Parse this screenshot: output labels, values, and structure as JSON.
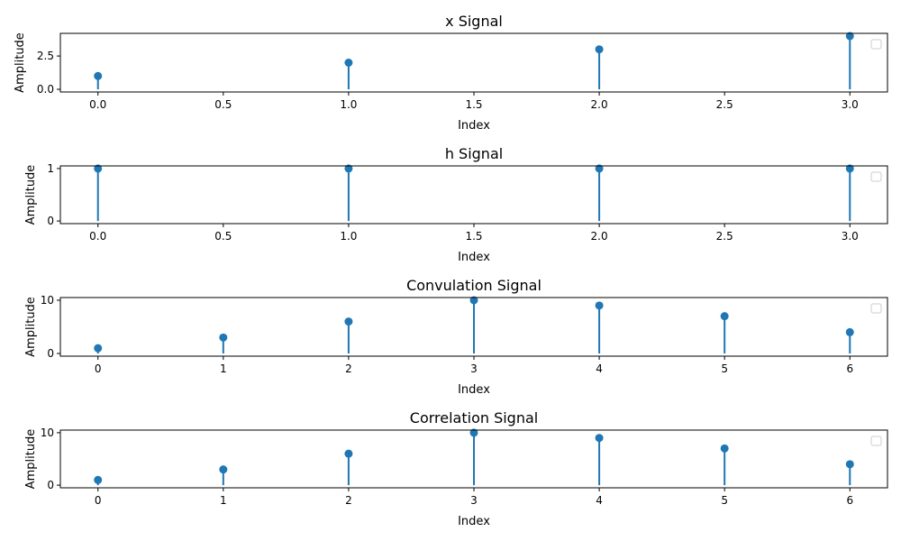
{
  "colors": {
    "stem": "#1f77b4",
    "axis": "#000000",
    "legend_border": "#cccccc"
  },
  "chart_data": [
    {
      "type": "stem",
      "title": "x Signal",
      "xlabel": "Index",
      "ylabel": "Amplitude",
      "x": [
        0,
        1,
        2,
        3
      ],
      "values": [
        1,
        2,
        3,
        4
      ],
      "xlim": [
        -0.15,
        3.15
      ],
      "ylim": [
        -0.2,
        4.2
      ],
      "xticks": [
        0.0,
        0.5,
        1.0,
        1.5,
        2.0,
        2.5,
        3.0
      ],
      "xtick_labels": [
        "0.0",
        "0.5",
        "1.0",
        "1.5",
        "2.0",
        "2.5",
        "3.0"
      ],
      "yticks": [
        0,
        2.5
      ],
      "ytick_labels": [
        "0.0",
        "2.5"
      ],
      "grid": false,
      "legend": "upper right (empty)"
    },
    {
      "type": "stem",
      "title": "h Signal",
      "xlabel": "Index",
      "ylabel": "Amplitude",
      "x": [
        0,
        1,
        2,
        3
      ],
      "values": [
        1,
        1,
        1,
        1
      ],
      "xlim": [
        -0.15,
        3.15
      ],
      "ylim": [
        -0.05,
        1.05
      ],
      "xticks": [
        0.0,
        0.5,
        1.0,
        1.5,
        2.0,
        2.5,
        3.0
      ],
      "xtick_labels": [
        "0.0",
        "0.5",
        "1.0",
        "1.5",
        "2.0",
        "2.5",
        "3.0"
      ],
      "yticks": [
        0,
        1
      ],
      "ytick_labels": [
        "0",
        "1"
      ],
      "grid": false,
      "legend": "upper right (empty)"
    },
    {
      "type": "stem",
      "title": "Convulation Signal",
      "xlabel": "Index",
      "ylabel": "Amplitude",
      "x": [
        0,
        1,
        2,
        3,
        4,
        5,
        6
      ],
      "values": [
        1,
        3,
        6,
        10,
        9,
        7,
        4
      ],
      "xlim": [
        -0.3,
        6.3
      ],
      "ylim": [
        -0.5,
        10.5
      ],
      "xticks": [
        0,
        1,
        2,
        3,
        4,
        5,
        6
      ],
      "xtick_labels": [
        "0",
        "1",
        "2",
        "3",
        "4",
        "5",
        "6"
      ],
      "yticks": [
        0,
        10
      ],
      "ytick_labels": [
        "0",
        "10"
      ],
      "grid": false,
      "legend": "upper right (empty)"
    },
    {
      "type": "stem",
      "title": "Correlation Signal",
      "xlabel": "Index",
      "ylabel": "Amplitude",
      "x": [
        0,
        1,
        2,
        3,
        4,
        5,
        6
      ],
      "values": [
        1,
        3,
        6,
        10,
        9,
        7,
        4
      ],
      "xlim": [
        -0.3,
        6.3
      ],
      "ylim": [
        -0.5,
        10.5
      ],
      "xticks": [
        0,
        1,
        2,
        3,
        4,
        5,
        6
      ],
      "xtick_labels": [
        "0",
        "1",
        "2",
        "3",
        "4",
        "5",
        "6"
      ],
      "yticks": [
        0,
        10
      ],
      "ytick_labels": [
        "0",
        "10"
      ],
      "grid": false,
      "legend": "upper right (empty)"
    }
  ]
}
